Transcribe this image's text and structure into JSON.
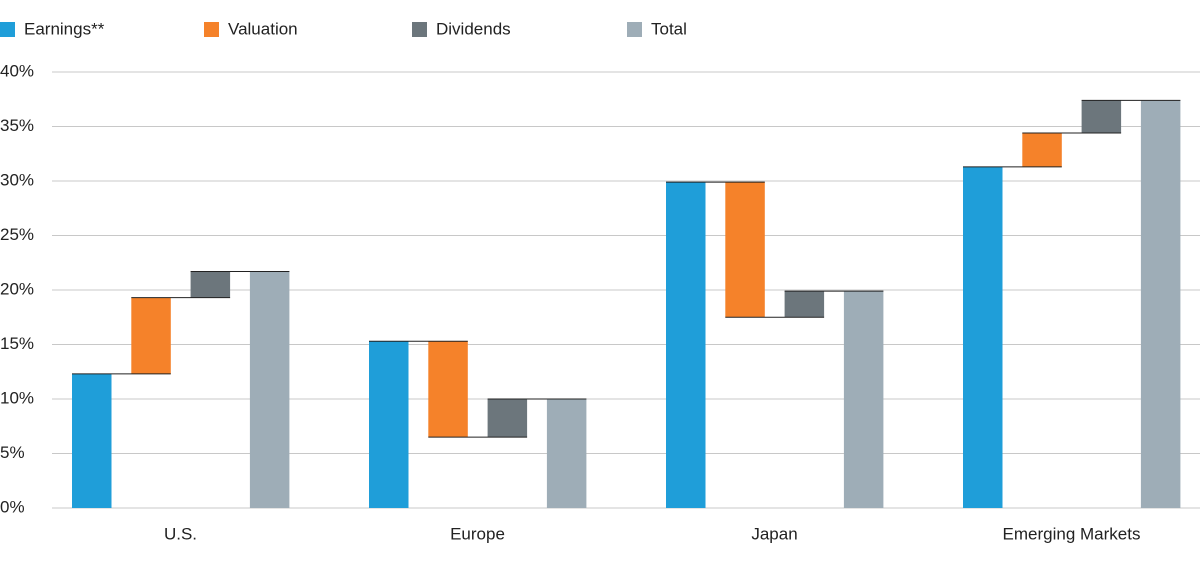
{
  "chart_data": {
    "type": "waterfall",
    "categories": [
      "U.S.",
      "Europe",
      "Japan",
      "Emerging Markets"
    ],
    "series": [
      {
        "name": "Earnings**",
        "color": "#1f9ed9",
        "values": [
          12.3,
          15.3,
          29.9,
          31.3
        ]
      },
      {
        "name": "Valuation",
        "color": "#f5822a",
        "values": [
          7.0,
          -8.8,
          -12.4,
          3.1
        ]
      },
      {
        "name": "Dividends",
        "color": "#6c767c",
        "values": [
          2.4,
          3.5,
          2.4,
          3.0
        ]
      },
      {
        "name": "Total",
        "color": "#9eadb7",
        "values": [
          21.7,
          10.0,
          19.9,
          37.4
        ]
      }
    ],
    "ylim": [
      0,
      40
    ],
    "yticks": [
      {
        "value": 0,
        "label": "0%"
      },
      {
        "value": 5,
        "label": "5%"
      },
      {
        "value": 10,
        "label": "10%"
      },
      {
        "value": 15,
        "label": "15%"
      },
      {
        "value": 20,
        "label": "20%"
      },
      {
        "value": 25,
        "label": "25%"
      },
      {
        "value": 30,
        "label": "30%"
      },
      {
        "value": 35,
        "label": "35%"
      },
      {
        "value": 40,
        "label": "40%"
      }
    ],
    "grid": true
  }
}
